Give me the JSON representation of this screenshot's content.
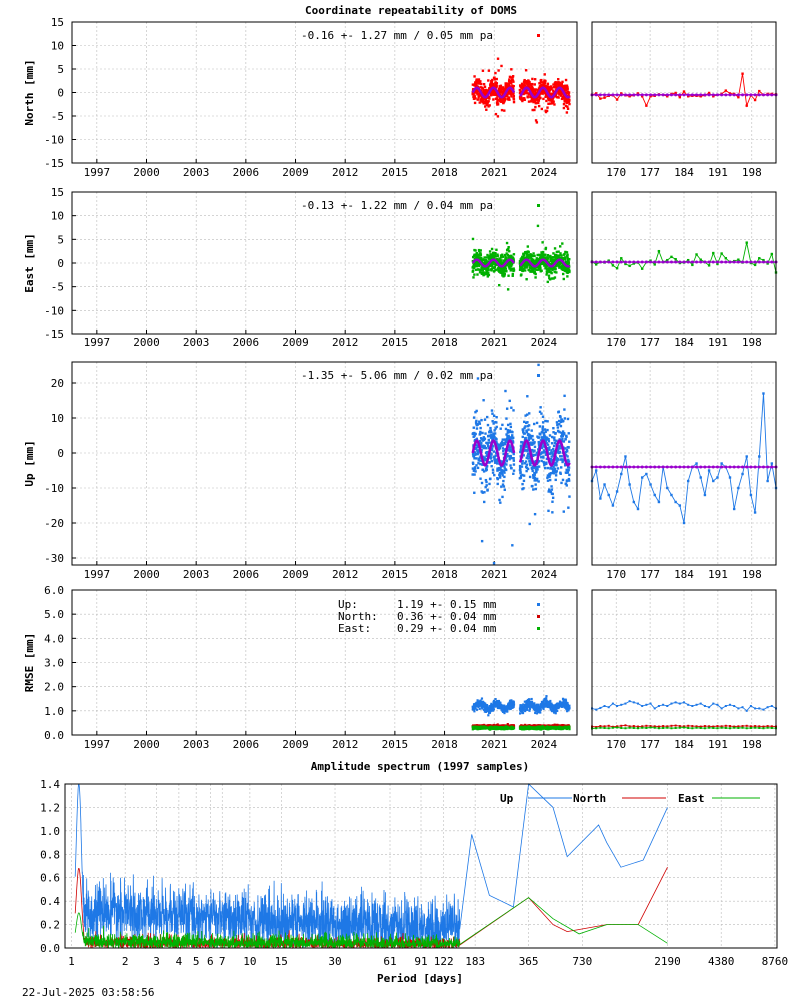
{
  "title": "Coordinate repeatability of DOMS",
  "timestamp": "22-Jul-2025 03:58:56",
  "colors": {
    "north": "#ff0000",
    "east": "#00b000",
    "up": "#1e78e6",
    "model": "#9900cc",
    "rmse_north": "#d00000",
    "rmse_east": "#00b000"
  },
  "chart_data": [
    {
      "type": "scatter",
      "panel": "north",
      "ylabel": "North [mm]",
      "ylim": [
        -15,
        15
      ],
      "yticks": [
        15,
        10,
        5,
        0,
        -5,
        -10,
        -15
      ],
      "xlim": [
        1995.5,
        2026.0
      ],
      "xticks": [
        "1997",
        "2000",
        "2003",
        "2006",
        "2009",
        "2012",
        "2015",
        "2018",
        "2021",
        "2024"
      ],
      "annotation": "-0.16 +- 1.27 mm /  0.05 mm pa",
      "data_start": 2019.7,
      "data_end": 2025.55,
      "scatter": 1.27,
      "seasonal_amplitude": 1.0,
      "gaps": [
        [
          2022.2,
          2022.55
        ]
      ],
      "zoom": {
        "xticks": [
          "170",
          "177",
          "184",
          "191",
          "198"
        ],
        "xlim": [
          165,
          203
        ],
        "values": [
          -0.5,
          -0.2,
          -1.3,
          -1.1,
          -0.7,
          -0.6,
          -1.5,
          -0.2,
          -0.6,
          -0.8,
          -0.6,
          -0.2,
          -0.8,
          -2.8,
          -0.8,
          -0.7,
          -0.4,
          -0.5,
          -0.8,
          -0.3,
          -0.1,
          -1.0,
          0.2,
          -0.8,
          -0.7,
          -0.7,
          -0.8,
          -0.6,
          -0.1,
          -0.8,
          -0.5,
          -0.3,
          0.4,
          -0.2,
          -0.3,
          -1.0,
          4.0,
          -2.8,
          -0.6,
          -1.6,
          0.3,
          -0.5,
          -0.3,
          -0.3,
          -0.4
        ],
        "model": -0.5
      }
    },
    {
      "type": "scatter",
      "panel": "east",
      "ylabel": "East [mm]",
      "ylim": [
        -15,
        15
      ],
      "yticks": [
        15,
        10,
        5,
        0,
        -5,
        -10,
        -15
      ],
      "xlim": [
        1995.5,
        2026.0
      ],
      "xticks": [
        "1997",
        "2000",
        "2003",
        "2006",
        "2009",
        "2012",
        "2015",
        "2018",
        "2021",
        "2024"
      ],
      "annotation": "-0.13 +- 1.22 mm /  0.04 mm pa",
      "data_start": 2019.7,
      "data_end": 2025.55,
      "scatter": 1.22,
      "seasonal_amplitude": 0.7,
      "gaps": [
        [
          2022.2,
          2022.55
        ]
      ],
      "zoom": {
        "xticks": [
          "170",
          "177",
          "184",
          "191",
          "198"
        ],
        "xlim": [
          165,
          203
        ],
        "values": [
          0.3,
          -0.3,
          0.2,
          0.1,
          0.5,
          -0.5,
          -1.1,
          1.0,
          -0.2,
          -0.6,
          -0.1,
          0.1,
          -1.2,
          0.2,
          0.5,
          -0.3,
          2.5,
          0.2,
          0.6,
          1.3,
          0.8,
          0.0,
          0.1,
          0.6,
          -0.4,
          1.8,
          0.7,
          0.2,
          -0.5,
          2.1,
          -0.2,
          2.0,
          1.0,
          0.2,
          0.4,
          0.7,
          0.1,
          4.3,
          0.0,
          -0.4,
          1.0,
          0.6,
          -0.1,
          1.9,
          -2.0
        ],
        "model": 0.2
      }
    },
    {
      "type": "scatter",
      "panel": "up",
      "ylabel": "Up [mm]",
      "ylim": [
        -32,
        26
      ],
      "yticks": [
        20,
        10,
        0,
        -10,
        -20,
        -30
      ],
      "xlim": [
        1995.5,
        2026.0
      ],
      "xticks": [
        "1997",
        "2000",
        "2003",
        "2006",
        "2009",
        "2012",
        "2015",
        "2018",
        "2021",
        "2024"
      ],
      "annotation": "-1.35 +- 5.06 mm /  0.02 mm pa",
      "data_start": 2019.7,
      "data_end": 2025.55,
      "scatter": 5.06,
      "seasonal_amplitude": 3.5,
      "gaps": [
        [
          2022.2,
          2022.55
        ]
      ],
      "zoom": {
        "xticks": [
          "170",
          "177",
          "184",
          "191",
          "198"
        ],
        "xlim": [
          165,
          203
        ],
        "values": [
          -8,
          -5,
          -13,
          -9,
          -12,
          -15,
          -11,
          -6,
          -1,
          -9,
          -14,
          -16,
          -7,
          -6,
          -9,
          -12,
          -14,
          -4,
          -10,
          -12,
          -14,
          -15,
          -20,
          -8,
          -4,
          -3,
          -7,
          -12,
          -5,
          -8,
          -7,
          -3,
          -4,
          -7,
          -16,
          -10,
          -6,
          -1,
          -12,
          -17,
          -1,
          17,
          -8,
          -3,
          -10
        ],
        "model": -4
      }
    },
    {
      "type": "line",
      "panel": "rmse",
      "ylabel": "RMSE [mm]",
      "ylim": [
        0,
        6
      ],
      "yticks": [
        "6.0",
        "5.0",
        "4.0",
        "3.0",
        "2.0",
        "1.0",
        "0.0"
      ],
      "xlim": [
        1995.5,
        2026.0
      ],
      "xticks": [
        "1997",
        "2000",
        "2003",
        "2006",
        "2009",
        "2012",
        "2015",
        "2018",
        "2021",
        "2024"
      ],
      "legend": [
        {
          "name": "Up:",
          "value": "1.19 +- 0.15 mm"
        },
        {
          "name": "North:",
          "value": "0.36 +- 0.04 mm"
        },
        {
          "name": "East:",
          "value": "0.29 +- 0.04 mm"
        }
      ],
      "series": [
        {
          "name": "Up",
          "mean": 1.19,
          "sd": 0.15
        },
        {
          "name": "North",
          "mean": 0.36,
          "sd": 0.04
        },
        {
          "name": "East",
          "mean": 0.29,
          "sd": 0.04
        }
      ],
      "data_start": 2019.7,
      "data_end": 2025.55,
      "zoom": {
        "xticks": [
          "170",
          "177",
          "184",
          "191",
          "198"
        ],
        "xlim": [
          165,
          203
        ],
        "up": [
          1.1,
          1.05,
          1.12,
          1.2,
          1.15,
          1.3,
          1.2,
          1.25,
          1.3,
          1.4,
          1.35,
          1.3,
          1.2,
          1.25,
          1.3,
          1.1,
          1.2,
          1.25,
          1.2,
          1.3,
          1.35,
          1.3,
          1.35,
          1.25,
          1.2,
          1.25,
          1.3,
          1.2,
          1.15,
          1.3,
          1.25,
          1.1,
          1.2,
          1.25,
          1.2,
          1.1,
          1.15,
          1.0,
          1.2,
          1.1,
          1.1,
          1.05,
          1.15,
          1.2,
          1.1
        ],
        "north": [
          0.35,
          0.33,
          0.37,
          0.36,
          0.38,
          0.34,
          0.36,
          0.38,
          0.4,
          0.36,
          0.37,
          0.35,
          0.36,
          0.38,
          0.37,
          0.36,
          0.35,
          0.37,
          0.36,
          0.38,
          0.39,
          0.37,
          0.36,
          0.38,
          0.37,
          0.36,
          0.35,
          0.37,
          0.36,
          0.35,
          0.37,
          0.36,
          0.38,
          0.37,
          0.35,
          0.36,
          0.37,
          0.38,
          0.36,
          0.37,
          0.36,
          0.35,
          0.37,
          0.36,
          0.35
        ],
        "east": [
          0.27,
          0.28,
          0.3,
          0.29,
          0.28,
          0.3,
          0.31,
          0.29,
          0.28,
          0.3,
          0.29,
          0.28,
          0.3,
          0.29,
          0.31,
          0.3,
          0.28,
          0.29,
          0.3,
          0.28,
          0.29,
          0.3,
          0.31,
          0.29,
          0.28,
          0.3,
          0.29,
          0.28,
          0.3,
          0.29,
          0.28,
          0.3,
          0.29,
          0.28,
          0.3,
          0.29,
          0.3,
          0.28,
          0.29,
          0.3,
          0.29,
          0.28,
          0.3,
          0.29,
          0.28
        ]
      }
    },
    {
      "type": "line",
      "panel": "spectrum",
      "title": "Amplitude spectrum (1997 samples)",
      "xlabel": "Period [days]",
      "ylim": [
        0,
        1.4
      ],
      "yticks": [
        "1.4",
        "1.2",
        "1.0",
        "0.8",
        "0.6",
        "0.4",
        "0.2",
        "0.0"
      ],
      "xlim_log": [
        0.92,
        9000
      ],
      "xticks": [
        {
          "v": 1,
          "l": "1"
        },
        {
          "v": 2,
          "l": "2"
        },
        {
          "v": 3,
          "l": "3"
        },
        {
          "v": 4,
          "l": "4"
        },
        {
          "v": 5,
          "l": "5"
        },
        {
          "v": 6,
          "l": "6"
        },
        {
          "v": 7,
          "l": "7"
        },
        {
          "v": 10,
          "l": "10"
        },
        {
          "v": 15,
          "l": "15"
        },
        {
          "v": 30,
          "l": "30"
        },
        {
          "v": 61,
          "l": "61"
        },
        {
          "v": 91,
          "l": "91"
        },
        {
          "v": 122,
          "l": "122"
        },
        {
          "v": 183,
          "l": "183"
        },
        {
          "v": 365,
          "l": "365"
        },
        {
          "v": 730,
          "l": "730"
        },
        {
          "v": 2190,
          "l": "2190"
        },
        {
          "v": 4380,
          "l": "4380"
        },
        {
          "v": 8760,
          "l": "8760"
        }
      ],
      "series": [
        {
          "name": "Up"
        },
        {
          "name": "North"
        },
        {
          "name": "East"
        }
      ],
      "up_peaks": [
        [
          1.1,
          1.4
        ],
        [
          1.15,
          0.6
        ],
        [
          1.2,
          0.45
        ],
        [
          175,
          0.97
        ],
        [
          220,
          0.45
        ],
        [
          300,
          0.35
        ],
        [
          365,
          1.4
        ],
        [
          500,
          1.2
        ],
        [
          600,
          0.78
        ],
        [
          900,
          1.05
        ],
        [
          1000,
          0.9
        ],
        [
          1200,
          0.69
        ],
        [
          1600,
          0.75
        ],
        [
          2190,
          1.2
        ]
      ],
      "north_peaks": [
        [
          1.1,
          0.68
        ],
        [
          365,
          0.43
        ],
        [
          500,
          0.2
        ],
        [
          600,
          0.14
        ],
        [
          1000,
          0.2
        ],
        [
          1500,
          0.2
        ],
        [
          2190,
          0.69
        ]
      ],
      "east_peaks": [
        [
          1.1,
          0.3
        ],
        [
          365,
          0.43
        ],
        [
          500,
          0.25
        ],
        [
          700,
          0.12
        ],
        [
          1000,
          0.2
        ],
        [
          1500,
          0.2
        ],
        [
          2190,
          0.04
        ]
      ]
    }
  ]
}
